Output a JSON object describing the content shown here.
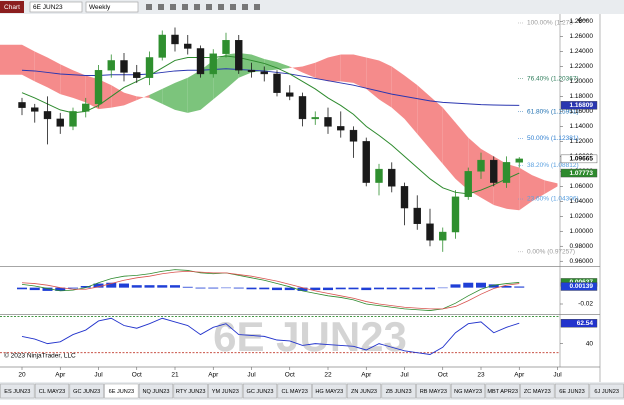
{
  "toolbar": {
    "title": "Chart",
    "instrument": "6E JUN23",
    "interval": "Weekly"
  },
  "watermark": "6E JUN23",
  "copyright": "© 2023 NinjaTrader, LLC",
  "tabs": [
    "ES JUN23",
    "CL MAY23",
    "GC JUN23",
    "6E JUN23",
    "NQ JUN23",
    "RTY JUN23",
    "YM JUN23",
    "GC JUN23",
    "CL MAY23",
    "HG MAY23",
    "ZN JUN23",
    "ZB JUN23",
    "RB MAY23",
    "NG MAY23",
    "MBT APR23",
    "ZC MAY23",
    "6E JUN23",
    "6J JUN23"
  ],
  "active_tab": 3,
  "chart_data": [
    {
      "type": "candlestick",
      "categories": [
        "20",
        null,
        null,
        "Apr",
        null,
        null,
        "Jul",
        null,
        null,
        "Oct",
        null,
        null,
        "21",
        null,
        null,
        "Apr",
        null,
        null,
        "Jul",
        null,
        null,
        "Oct",
        null,
        null,
        "22",
        null,
        null,
        "Apr",
        null,
        null,
        "Jul",
        null,
        null,
        "Oct",
        null,
        null,
        "23",
        null,
        null,
        "Apr",
        null,
        null,
        "Jul"
      ],
      "open": [
        1.172,
        1.165,
        1.16,
        1.15,
        1.14,
        1.16,
        1.17,
        1.215,
        1.228,
        1.212,
        1.205,
        1.232,
        1.262,
        1.25,
        1.244,
        1.21,
        1.237,
        1.255,
        1.215,
        1.213,
        1.21,
        1.185,
        1.18,
        1.15,
        1.152,
        1.14,
        1.135,
        1.12,
        1.065,
        1.083,
        1.06,
        1.031,
        1.01,
        0.988,
        0.999,
        1.046,
        1.08,
        1.095,
        1.065,
        1.092,
        null,
        null,
        null
      ],
      "high": [
        1.178,
        1.17,
        1.18,
        1.158,
        1.165,
        1.178,
        1.222,
        1.236,
        1.238,
        1.222,
        1.24,
        1.268,
        1.272,
        1.262,
        1.248,
        1.243,
        1.265,
        1.262,
        1.225,
        1.22,
        1.215,
        1.195,
        1.185,
        1.16,
        1.165,
        1.16,
        1.14,
        1.125,
        1.09,
        1.092,
        1.065,
        1.048,
        1.03,
        1.005,
        1.055,
        1.085,
        1.105,
        1.1,
        1.1,
        1.099,
        null,
        null,
        null
      ],
      "low": [
        1.155,
        1.145,
        1.116,
        1.13,
        1.135,
        1.152,
        1.165,
        1.205,
        1.2,
        1.198,
        1.195,
        1.228,
        1.24,
        1.236,
        1.205,
        1.205,
        1.232,
        1.21,
        1.205,
        1.2,
        1.18,
        1.175,
        1.14,
        1.142,
        1.13,
        1.125,
        1.098,
        1.06,
        1.048,
        1.052,
        1.008,
        1.002,
        0.98,
        0.97257,
        0.99,
        1.042,
        1.07,
        1.06,
        1.058,
        1.085,
        null,
        null,
        null
      ],
      "close": [
        1.165,
        1.16,
        1.15,
        1.14,
        1.16,
        1.17,
        1.215,
        1.228,
        1.212,
        1.205,
        1.232,
        1.262,
        1.25,
        1.244,
        1.21,
        1.237,
        1.255,
        1.215,
        1.213,
        1.21,
        1.185,
        1.18,
        1.15,
        1.152,
        1.14,
        1.135,
        1.12,
        1.065,
        1.083,
        1.06,
        1.031,
        1.01,
        0.988,
        0.999,
        1.046,
        1.08,
        1.095,
        1.065,
        1.092,
        1.09665,
        null,
        null,
        null
      ],
      "up_color": "#2f8f2f",
      "down_color": "#1a1a1a",
      "series": [
        {
          "name": "slow-ma",
          "color": "#2a36b0",
          "values": [
            1.215,
            1.214,
            1.212,
            1.21,
            1.209,
            1.208,
            1.208,
            1.209,
            1.209,
            1.209,
            1.21,
            1.212,
            1.214,
            1.215,
            1.215,
            1.216,
            1.217,
            1.216,
            1.215,
            1.214,
            1.212,
            1.21,
            1.207,
            1.204,
            1.201,
            1.198,
            1.195,
            1.191,
            1.187,
            1.183,
            1.18,
            1.177,
            1.174,
            1.172,
            1.171,
            1.17,
            1.169,
            1.1685,
            1.1682,
            1.16809,
            null,
            null,
            null
          ]
        },
        {
          "name": "fast-ma",
          "color": "#2d8a2d",
          "values": [
            1.185,
            1.178,
            1.17,
            1.162,
            1.158,
            1.16,
            1.168,
            1.18,
            1.192,
            1.2,
            1.208,
            1.218,
            1.228,
            1.232,
            1.232,
            1.232,
            1.234,
            1.232,
            1.228,
            1.224,
            1.218,
            1.21,
            1.2,
            1.19,
            1.178,
            1.168,
            1.156,
            1.14,
            1.128,
            1.115,
            1.1,
            1.085,
            1.07,
            1.058,
            1.052,
            1.05,
            1.055,
            1.062,
            1.07,
            1.07773,
            null,
            null,
            null
          ]
        }
      ],
      "cloud": {
        "span_a": [
          1.209,
          1.2,
          1.192,
          1.183,
          1.178,
          1.172,
          1.163,
          1.165,
          1.168,
          1.175,
          1.182,
          1.19,
          1.198,
          1.205,
          1.215,
          1.228,
          1.236,
          1.238,
          1.236,
          1.23,
          1.226,
          1.22,
          1.212,
          1.205,
          1.2,
          1.2,
          1.198,
          1.19,
          1.176,
          1.165,
          1.15,
          1.13,
          1.11,
          1.09,
          1.07,
          1.055,
          1.045,
          1.035,
          1.03,
          1.028,
          1.04,
          1.05,
          1.06
        ],
        "span_b": [
          1.249,
          1.24,
          1.232,
          1.223,
          1.215,
          1.208,
          1.203,
          1.195,
          1.185,
          1.18,
          1.178,
          1.17,
          1.162,
          1.158,
          1.162,
          1.176,
          1.19,
          1.205,
          1.212,
          1.214,
          1.216,
          1.218,
          1.22,
          1.225,
          1.232,
          1.236,
          1.236,
          1.232,
          1.228,
          1.22,
          1.208,
          1.195,
          1.18,
          1.165,
          1.145,
          1.125,
          1.11,
          1.1,
          1.09,
          1.085,
          1.075,
          1.068,
          1.064
        ],
        "bull_color": "#7cc47c",
        "bear_color": "#f58b8b"
      },
      "fib": [
        {
          "value": 1.278,
          "label": "100.00% (1.278",
          "color": "#9a9a9a"
        },
        {
          "value": 1.20367,
          "label": "76.40% (1.20367)",
          "color": "#2e7d5b"
        },
        {
          "value": 1.15951,
          "label": "61.80% (1.15951)",
          "color": "#1e6fb0"
        },
        {
          "value": 1.12381,
          "label": "50.00% (1.12381)",
          "color": "#2f7fd0"
        },
        {
          "value": 1.08812,
          "label": "38.20% (1.08812)",
          "color": "#5aa0e0"
        },
        {
          "value": 1.04306,
          "label": "23.60% (1.04306)",
          "color": "#5aa0e0"
        },
        {
          "value": 0.97257,
          "label": "0.00% (0.97257)",
          "color": "#9a9a9a"
        }
      ],
      "markers": [
        {
          "value": 1.16809,
          "color": "#2a36b0",
          "text_color": "#ffffff"
        },
        {
          "value": 1.09665,
          "color": "#ffffff",
          "text_color": "#000000"
        },
        {
          "value": 1.07773,
          "color": "#2d8a2d",
          "text_color": "#ffffff"
        }
      ],
      "ylim": [
        0.955,
        1.29
      ],
      "yticks": [
        {
          "value": 0.96,
          "label": "0.96000"
        },
        {
          "value": 0.98,
          "label": "0.98000"
        },
        {
          "value": 1.0,
          "label": "1.00000"
        },
        {
          "value": 1.02,
          "label": "1.02000"
        },
        {
          "value": 1.04,
          "label": "1.04000"
        },
        {
          "value": 1.06,
          "label": "1.06000"
        },
        {
          "value": 1.08,
          "label": "1.08000"
        },
        {
          "value": 1.1,
          "label": "1.10000"
        },
        {
          "value": 1.12,
          "label": "1.12000"
        },
        {
          "value": 1.14,
          "label": "1.14000"
        },
        {
          "value": 1.16,
          "label": "1.16000"
        },
        {
          "value": 1.18,
          "label": "1.18000"
        },
        {
          "value": 1.2,
          "label": "1.20000"
        },
        {
          "value": 1.22,
          "label": "1.22000"
        },
        {
          "value": 1.24,
          "label": "1.24000"
        },
        {
          "value": 1.26,
          "label": "1.26000"
        },
        {
          "value": 1.28,
          "label": "1.28000"
        }
      ]
    },
    {
      "type": "macd",
      "histogram": {
        "color": "#1f3fd6",
        "values": [
          -0.002,
          -0.003,
          -0.004,
          -0.004,
          -0.001,
          0.002,
          0.005,
          0.006,
          0.005,
          0.003,
          0.003,
          0.003,
          0.003,
          0.001,
          -0.001,
          -0.001,
          0.0,
          -0.001,
          -0.002,
          -0.002,
          -0.003,
          -0.003,
          -0.004,
          -0.003,
          -0.003,
          -0.002,
          -0.002,
          -0.003,
          -0.002,
          -0.002,
          -0.002,
          -0.002,
          -0.002,
          0.0,
          0.004,
          0.006,
          0.006,
          0.004,
          0.002,
          0.00139
        ]
      },
      "series": [
        {
          "name": "macd",
          "color": "#2d8a2d",
          "values": [
            0.004,
            0.002,
            -0.001,
            -0.004,
            -0.003,
            0.0,
            0.006,
            0.011,
            0.014,
            0.015,
            0.017,
            0.02,
            0.022,
            0.021,
            0.018,
            0.017,
            0.018,
            0.015,
            0.012,
            0.009,
            0.005,
            0.001,
            -0.004,
            -0.007,
            -0.01,
            -0.012,
            -0.015,
            -0.02,
            -0.022,
            -0.024,
            -0.026,
            -0.027,
            -0.028,
            -0.026,
            -0.019,
            -0.01,
            -0.002,
            0.003,
            0.005,
            0.00637
          ]
        },
        {
          "name": "signal",
          "color": "#d9534f",
          "values": [
            0.006,
            0.005,
            0.003,
            0.0,
            -0.002,
            -0.002,
            0.001,
            0.005,
            0.009,
            0.012,
            0.014,
            0.017,
            0.019,
            0.02,
            0.019,
            0.018,
            0.018,
            0.016,
            0.014,
            0.011,
            0.008,
            0.004,
            0.0,
            -0.004,
            -0.007,
            -0.01,
            -0.013,
            -0.017,
            -0.02,
            -0.022,
            -0.024,
            -0.025,
            -0.026,
            -0.026,
            -0.023,
            -0.016,
            -0.008,
            -0.001,
            0.003,
            0.00498
          ]
        }
      ],
      "markers": [
        {
          "value": 0.00637,
          "color": "#2d8a2d",
          "text_color": "#ffffff"
        },
        {
          "value": 0.00139,
          "color": "#1f3fd6",
          "text_color": "#ffffff"
        }
      ],
      "ylim": [
        -0.031,
        0.024
      ],
      "yticks": [
        -0.02
      ]
    },
    {
      "type": "line",
      "series": [
        {
          "name": "rsi",
          "color": "#2233cc",
          "values": [
            48,
            45,
            40,
            42,
            50,
            55,
            65,
            68,
            60,
            57,
            62,
            68,
            64,
            60,
            50,
            58,
            62,
            50,
            49,
            48,
            44,
            43,
            38,
            40,
            39,
            38,
            37,
            33,
            40,
            36,
            32,
            30,
            28,
            36,
            52,
            62,
            64,
            52,
            58,
            62.54
          ]
        }
      ],
      "levels": [
        {
          "value": 70,
          "color": "#2d8a2d"
        },
        {
          "value": 30,
          "color": "#c0392b"
        }
      ],
      "markers": [
        {
          "value": 62.54,
          "color": "#2233cc",
          "text_color": "#ffffff"
        }
      ],
      "ylim": [
        15.3,
        70.5
      ],
      "yticks": [
        40
      ]
    }
  ]
}
